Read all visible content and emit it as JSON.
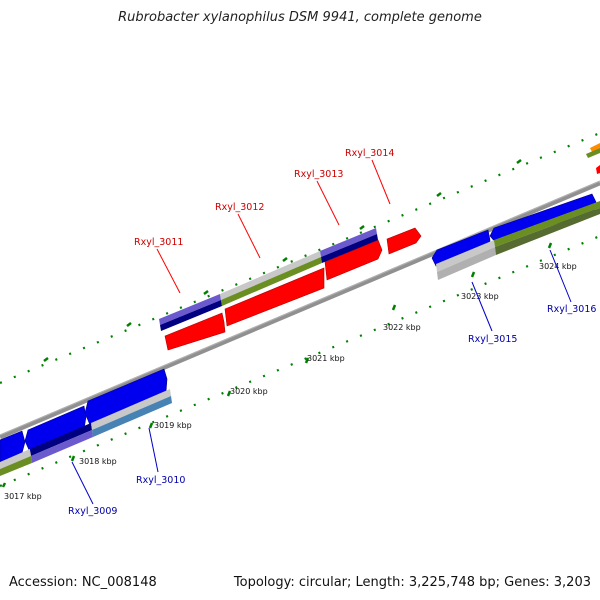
{
  "title": "Rubrobacter xylanophilus DSM 9941, complete genome",
  "footer": {
    "accession": "Accession: NC_008148",
    "stats": "Topology: circular; Length: 3,225,748 bp; Genes: 3,203"
  },
  "ruler": {
    "labels": [
      "3017 kbp",
      "3018 kbp",
      "3019 kbp",
      "3020 kbp",
      "3021 kbp",
      "3022 kbp",
      "3023 kbp",
      "3024 kbp"
    ]
  },
  "genes": {
    "forward": [
      "Rxyl_3011",
      "Rxyl_3012",
      "Rxyl_3013",
      "Rxyl_3014"
    ],
    "reverse": [
      "Rxyl_3009",
      "Rxyl_3010",
      "Rxyl_3015",
      "Rxyl_3016"
    ]
  },
  "colors": {
    "forward_cds": "#ff0000",
    "reverse_cds": "#0000ee",
    "cog_olive": "#6b8e23",
    "cog_navy": "#000080",
    "cog_slate": "#6a5acd",
    "cog_steel": "#4682b4",
    "cog_none": "#c8c8c8",
    "backbone": "#808080",
    "tick": "#008000"
  }
}
